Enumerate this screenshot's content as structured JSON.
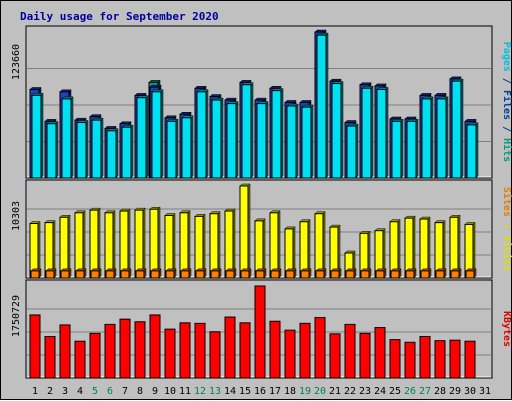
{
  "chart_data": {
    "type": "bar",
    "title": "Daily usage for September 2020",
    "categories": [
      "1",
      "2",
      "3",
      "4",
      "5",
      "6",
      "7",
      "8",
      "9",
      "10",
      "11",
      "12",
      "13",
      "14",
      "15",
      "16",
      "17",
      "18",
      "19",
      "20",
      "21",
      "22",
      "23",
      "24",
      "25",
      "26",
      "27",
      "28",
      "29",
      "30",
      "31"
    ],
    "weekend_days": [
      "5",
      "6",
      "12",
      "13",
      "19",
      "20",
      "26",
      "27"
    ],
    "panels": [
      {
        "id": "top",
        "max_label": "123660",
        "max": 123660,
        "axis_label_parts": [
          {
            "text": "Pages",
            "color": "#00c0e0"
          },
          {
            "text": " / ",
            "color": "#0040a0"
          },
          {
            "text": "Files",
            "color": "#0040a0"
          },
          {
            "text": " / ",
            "color": "#0040a0"
          },
          {
            "text": "Hits",
            "color": "#00a080"
          }
        ],
        "series": [
          {
            "name": "Hits",
            "color": "#00a080",
            "values": [
              null,
              null,
              null,
              null,
              null,
              null,
              null,
              null,
              81000,
              null,
              null,
              null,
              null,
              null,
              null,
              null,
              null,
              null,
              null,
              null,
              null,
              null,
              null,
              null,
              null,
              null,
              null,
              null,
              null,
              null,
              null
            ]
          },
          {
            "name": "Files",
            "color": "#2040c0",
            "values": [
              75000,
              48000,
              73000,
              49000,
              52000,
              42000,
              46000,
              70000,
              77000,
              51000,
              54000,
              76000,
              69000,
              66000,
              81000,
              66000,
              76000,
              64000,
              64000,
              123660,
              82000,
              47000,
              79000,
              78000,
              50000,
              50000,
              70000,
              70000,
              84000,
              48000,
              null
            ]
          },
          {
            "name": "Pages",
            "color": "#00e0f0",
            "values": [
              70000,
              46000,
              67000,
              47000,
              49000,
              40000,
              43000,
              68000,
              73000,
              48000,
              51000,
              73000,
              66000,
              63000,
              79000,
              63000,
              74000,
              61000,
              60000,
              121000,
              80000,
              44000,
              76000,
              75000,
              48000,
              48000,
              67000,
              67000,
              82000,
              45000,
              null
            ]
          }
        ]
      },
      {
        "id": "middle",
        "max_label": "10303",
        "max": 10303,
        "axis_label_parts": [
          {
            "text": "Sites",
            "color": "#e08000"
          },
          {
            "text": " / ",
            "color": "#e0e000"
          },
          {
            "text": "Visits",
            "color": "#e0e000"
          }
        ],
        "series": [
          {
            "name": "Visits",
            "color": "#ffff00",
            "values": [
              6100,
              6200,
              6800,
              7300,
              7600,
              7300,
              7500,
              7600,
              7700,
              7000,
              7300,
              6900,
              7200,
              7500,
              10303,
              6400,
              7300,
              5500,
              6300,
              7200,
              5700,
              2800,
              5000,
              5300,
              6300,
              6700,
              6600,
              6200,
              6800,
              6000,
              null
            ]
          },
          {
            "name": "Sites",
            "color": "#ff8000",
            "values": [
              800,
              800,
              800,
              800,
              800,
              800,
              800,
              800,
              800,
              800,
              800,
              800,
              800,
              800,
              800,
              800,
              800,
              800,
              800,
              800,
              800,
              800,
              800,
              800,
              800,
              800,
              800,
              800,
              800,
              800,
              null
            ]
          }
        ]
      },
      {
        "id": "bottom",
        "max_label": "1750729",
        "max": 1750729,
        "axis_label_parts": [
          {
            "text": "KBytes",
            "color": "#e00000"
          }
        ],
        "series": [
          {
            "name": "KBytes",
            "color": "#ff0000",
            "values": [
              1200000,
              790000,
              1010000,
              700000,
              850000,
              1020000,
              1120000,
              1070000,
              1200000,
              930000,
              1050000,
              1040000,
              880000,
              1160000,
              1050000,
              1750729,
              1080000,
              910000,
              1040000,
              1150000,
              840000,
              1020000,
              850000,
              960000,
              730000,
              680000,
              790000,
              710000,
              720000,
              700000,
              null
            ]
          }
        ]
      }
    ]
  }
}
